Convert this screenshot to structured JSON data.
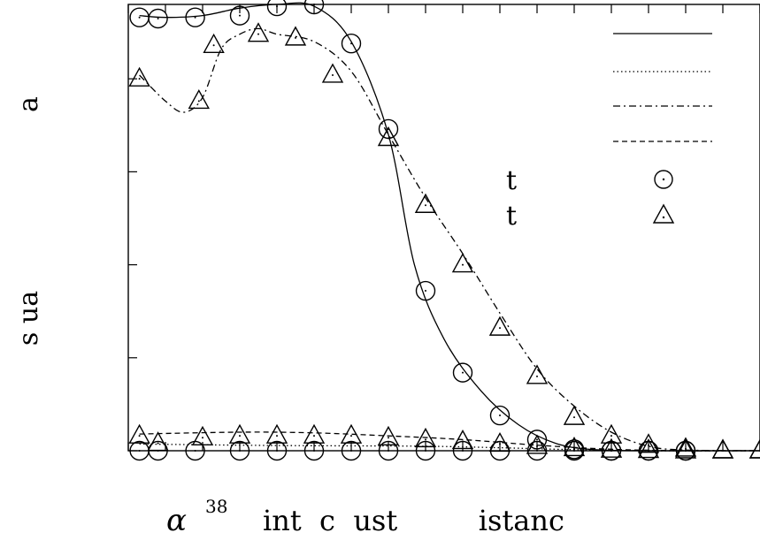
{
  "chart_data": {
    "type": "line",
    "title": "",
    "xlabel": {
      "alpha": "α",
      "superscript": "38",
      "rest": "int  c  ust         istanc"
    },
    "ylabel": {
      "top": "a",
      "bottom": "s  ua"
    },
    "xlim": [
      0,
      17
    ],
    "ylim": [
      0,
      1.2
    ],
    "y_ticks": [
      0,
      0.25,
      0.5,
      0.75,
      1.0
    ],
    "legend": {
      "placement": "top-right",
      "marker_labels": [
        "t",
        "t"
      ]
    },
    "series": [
      {
        "style": "solid",
        "smooth": [
          [
            0.3,
            1.17
          ],
          [
            1,
            1.165
          ],
          [
            2,
            1.17
          ],
          [
            3,
            1.19
          ],
          [
            4,
            1.2
          ],
          [
            5,
            1.195
          ],
          [
            6,
            1.1
          ],
          [
            7,
            0.85
          ],
          [
            7.7,
            0.5
          ],
          [
            8.5,
            0.3
          ],
          [
            9.5,
            0.16
          ],
          [
            10.5,
            0.07
          ],
          [
            11.5,
            0.02
          ],
          [
            12.5,
            0.003
          ],
          [
            14,
            0
          ],
          [
            16,
            0
          ],
          [
            17,
            0
          ]
        ]
      },
      {
        "style": "dotted",
        "smooth": [
          [
            0.3,
            0.018
          ],
          [
            4,
            0.014
          ],
          [
            8,
            0.012
          ],
          [
            10,
            0.008
          ],
          [
            12,
            0.003
          ],
          [
            14,
            0
          ],
          [
            17,
            0
          ]
        ]
      },
      {
        "style": "dashdot",
        "smooth": [
          [
            0.3,
            1.01
          ],
          [
            1,
            0.94
          ],
          [
            1.5,
            0.91
          ],
          [
            2,
            0.95
          ],
          [
            2.5,
            1.08
          ],
          [
            3,
            1.12
          ],
          [
            3.5,
            1.135
          ],
          [
            4,
            1.12
          ],
          [
            5,
            1.1
          ],
          [
            6,
            1.02
          ],
          [
            7,
            0.85
          ],
          [
            8,
            0.68
          ],
          [
            9,
            0.53
          ],
          [
            10,
            0.37
          ],
          [
            11,
            0.22
          ],
          [
            12,
            0.12
          ],
          [
            13,
            0.05
          ],
          [
            14,
            0.012
          ],
          [
            15,
            0.002
          ],
          [
            17,
            0
          ]
        ]
      },
      {
        "style": "dashed",
        "smooth": [
          [
            0.3,
            0.045
          ],
          [
            3,
            0.05
          ],
          [
            5,
            0.048
          ],
          [
            7,
            0.04
          ],
          [
            9,
            0.03
          ],
          [
            11,
            0.015
          ],
          [
            13,
            0.004
          ],
          [
            15,
            0
          ],
          [
            17,
            0
          ]
        ]
      },
      {
        "marker": "circle",
        "points": [
          [
            0.3,
            1.165
          ],
          [
            0.8,
            1.162
          ],
          [
            1.8,
            1.165
          ],
          [
            3,
            1.17
          ],
          [
            4,
            1.195
          ],
          [
            5,
            1.2
          ],
          [
            6,
            1.095
          ],
          [
            7,
            0.865
          ],
          [
            8,
            0.43
          ],
          [
            9,
            0.21
          ],
          [
            10,
            0.095
          ],
          [
            11,
            0.03
          ],
          [
            12,
            0.004
          ],
          [
            13,
            0
          ],
          [
            14,
            0
          ],
          [
            15,
            0
          ]
        ]
      },
      {
        "marker": "triangle",
        "points": [
          [
            0.3,
            1.0
          ],
          [
            1.9,
            0.94
          ],
          [
            2.3,
            1.09
          ],
          [
            3.5,
            1.12
          ],
          [
            4.5,
            1.11
          ],
          [
            5.5,
            1.01
          ],
          [
            7,
            0.84
          ],
          [
            8,
            0.66
          ],
          [
            9,
            0.5
          ],
          [
            10,
            0.33
          ],
          [
            11,
            0.2
          ],
          [
            12,
            0.09
          ],
          [
            13,
            0.04
          ],
          [
            14,
            0.015
          ],
          [
            15,
            0.005
          ],
          [
            16,
            0
          ],
          [
            17,
            0
          ]
        ]
      },
      {
        "marker": "circle",
        "points": [
          [
            0.3,
            0.0
          ],
          [
            0.8,
            0.0
          ],
          [
            1.8,
            0.0
          ],
          [
            3,
            0.0
          ],
          [
            4,
            0.0
          ],
          [
            5,
            0.0
          ],
          [
            6,
            0.0
          ],
          [
            7,
            0.0
          ],
          [
            8,
            0.0
          ],
          [
            9,
            0.0
          ],
          [
            10,
            0.0
          ],
          [
            11,
            0.0
          ],
          [
            12,
            0.0
          ],
          [
            13,
            0.0
          ],
          [
            14,
            0.0
          ],
          [
            15,
            0.0
          ]
        ]
      },
      {
        "marker": "triangle",
        "points": [
          [
            0.3,
            0.04
          ],
          [
            0.8,
            0.02
          ],
          [
            2,
            0.035
          ],
          [
            3,
            0.04
          ],
          [
            4,
            0.04
          ],
          [
            5,
            0.04
          ],
          [
            6,
            0.04
          ],
          [
            7,
            0.035
          ],
          [
            8,
            0.03
          ],
          [
            9,
            0.025
          ],
          [
            10,
            0.018
          ],
          [
            11,
            0.012
          ],
          [
            12,
            0.006
          ],
          [
            13,
            0.002
          ],
          [
            14,
            0.001
          ],
          [
            15,
            0.0
          ],
          [
            16,
            0.0
          ],
          [
            17,
            0.0
          ]
        ]
      }
    ]
  }
}
